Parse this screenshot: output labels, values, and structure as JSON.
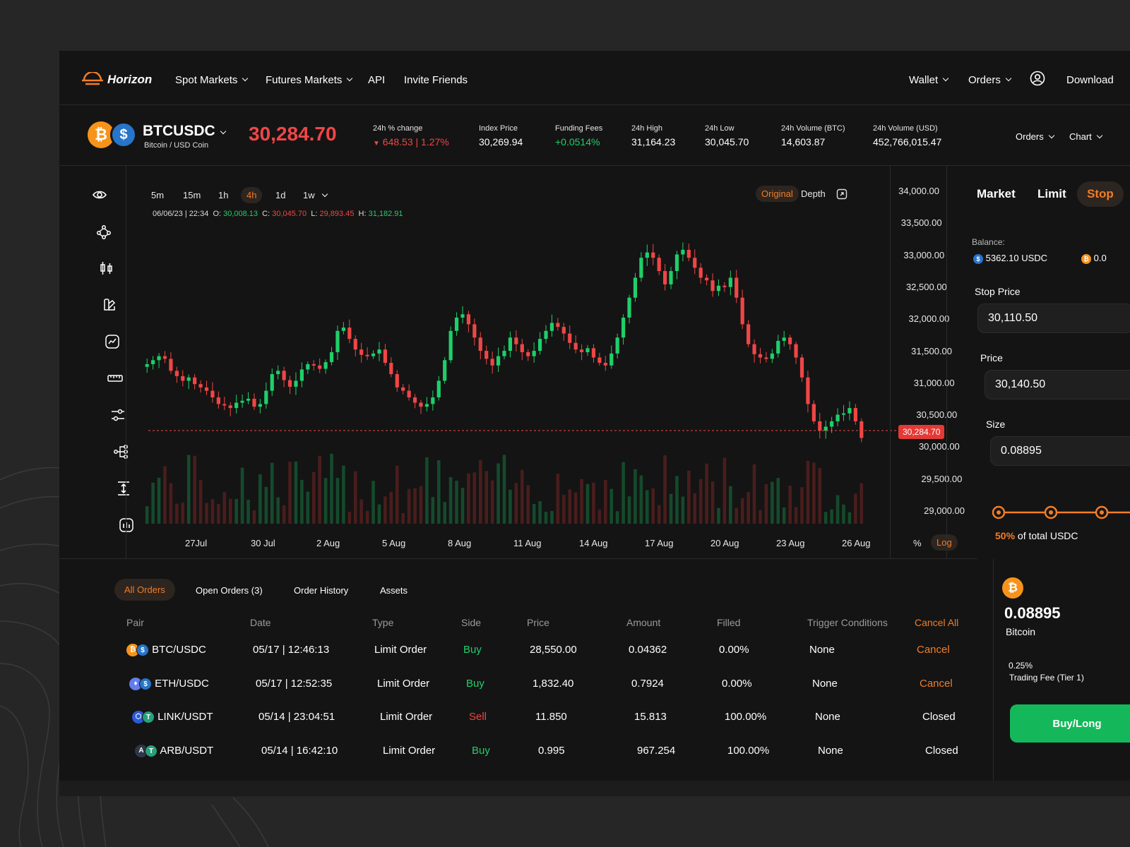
{
  "app": {
    "brand": "Horizon"
  },
  "nav": {
    "items": [
      "Spot Markets",
      "Futures Markets",
      "API",
      "Invite Friends"
    ],
    "right": [
      "Wallet",
      "Orders",
      "Download"
    ]
  },
  "pair": {
    "symbol": "BTCUSDC",
    "name": "Bitcoin / USD Coin",
    "last_price": "30,284.70"
  },
  "stats": [
    {
      "label": "24h % change",
      "value": "648.53 | 1.27%",
      "color": "#f04646"
    },
    {
      "label": "Index Price",
      "value": "30,269.94"
    },
    {
      "label": "Funding Fees",
      "value": "+0.0514%",
      "color": "#1fcf6a"
    },
    {
      "label": "24h High",
      "value": "31,164.23"
    },
    {
      "label": "24h Low",
      "value": "30,045.70"
    },
    {
      "label": "24h Volume (BTC)",
      "value": "14,603.87"
    },
    {
      "label": "24h Volume (USD)",
      "value": "452,766,015.47"
    }
  ],
  "header_right": {
    "orders": "Orders",
    "chart": "Chart"
  },
  "toolbar_icons": [
    "eye-icon",
    "node-icon",
    "candles-icon",
    "brush-icon",
    "chart-icon",
    "ruler-icon",
    "sliders-icon",
    "tree-icon",
    "resize-icon",
    "volume-icon"
  ],
  "chart": {
    "timeframes": [
      "5m",
      "15m",
      "1h",
      "4h",
      "1d",
      "1w"
    ],
    "active_timeframe": "4h",
    "views": {
      "original": "Original",
      "depth": "Depth"
    },
    "ohlc": {
      "time": "06/06/23 | 22:34",
      "o": "30,008.13",
      "c": "30,045.70",
      "l": "29,893.45",
      "h": "31,182.91"
    },
    "y_labels": [
      "34,000.00",
      "33,500.00",
      "33,000.00",
      "32,500.00",
      "32,000.00",
      "31,500.00",
      "31,000.00",
      "30,500.00",
      "30,000.00",
      "29,500.00",
      "29,000.00"
    ],
    "x_labels": [
      "27Jul",
      "30 Jul",
      "2 Aug",
      "5 Aug",
      "8 Aug",
      "11 Aug",
      "14 Aug",
      "17 Aug",
      "20 Aug",
      "23 Aug",
      "26 Aug"
    ],
    "current_price_tag": "30,284.70",
    "scale": {
      "percent": "%",
      "log": "Log"
    }
  },
  "chart_data": {
    "type": "candlestick",
    "ylim": [
      29000,
      34000
    ],
    "grid": false,
    "current_price": 30284.7,
    "close_series": [
      31400,
      31460,
      31520,
      31480,
      31300,
      31220,
      31150,
      31200,
      31100,
      31050,
      31000,
      30900,
      30800,
      30780,
      30740,
      30820,
      30850,
      30880,
      30760,
      30800,
      31000,
      31250,
      31300,
      31160,
      31060,
      31150,
      31320,
      31400,
      31380,
      31330,
      31430,
      31580,
      31900,
      31950,
      31780,
      31620,
      31540,
      31520,
      31560,
      31620,
      31420,
      31250,
      31050,
      31000,
      30900,
      30820,
      30760,
      30800,
      30900,
      31150,
      31460,
      31900,
      32100,
      32150,
      32000,
      31800,
      31600,
      31480,
      31380,
      31520,
      31600,
      31800,
      31700,
      31580,
      31520,
      31600,
      31780,
      31900,
      32020,
      31960,
      31860,
      31720,
      31620,
      31580,
      31640,
      31500,
      31420,
      31380,
      31560,
      31800,
      32100,
      32400,
      32700,
      33000,
      33080,
      33000,
      32800,
      32600,
      32800,
      33050,
      33120,
      33000,
      32850,
      32700,
      32660,
      32500,
      32580,
      32560,
      32700,
      32400,
      32000,
      31700,
      31550,
      31500,
      31480,
      31560,
      31750,
      31800,
      31700,
      31500,
      31200,
      30800,
      30540,
      30400,
      30460,
      30540,
      30640,
      30660,
      30740,
      30540,
      30290
    ],
    "volume_note": "volume bars below price, green = up, red = down"
  },
  "bottom_tabs": [
    "All Orders",
    "Open Orders (3)",
    "Order History",
    "Assets"
  ],
  "orders_table": {
    "headers": [
      "Pair",
      "Date",
      "Type",
      "Side",
      "Price",
      "Amount",
      "Filled",
      "Trigger Conditions"
    ],
    "cancel_all": "Cancel All",
    "rows": [
      {
        "pair": "BTC/USDC",
        "date": "05/17 | 12:46:13",
        "type": "Limit Order",
        "side": "Buy",
        "price": "28,550.00",
        "amount": "0.04362",
        "filled": "0.00%",
        "trigger": "None",
        "action": "Cancel"
      },
      {
        "pair": "ETH/USDC",
        "date": "05/17 | 12:52:35",
        "type": "Limit Order",
        "side": "Buy",
        "price": "1,832.40",
        "amount": "0.7924",
        "filled": "0.00%",
        "trigger": "None",
        "action": "Cancel"
      },
      {
        "pair": "LINK/USDT",
        "date": "05/14 | 23:04:51",
        "type": "Limit Order",
        "side": "Sell",
        "price": "11.850",
        "amount": "15.813",
        "filled": "100.00%",
        "trigger": "None",
        "action": "Closed"
      },
      {
        "pair": "ARB/USDT",
        "date": "05/14 | 16:42:10",
        "type": "Limit Order",
        "side": "Buy",
        "price": "0.995",
        "amount": "967.254",
        "filled": "100.00%",
        "trigger": "None",
        "action": "Closed"
      }
    ]
  },
  "order_panel": {
    "tabs": [
      "Market",
      "Limit",
      "Stop"
    ],
    "balance_label": "Balance:",
    "balance_usdc": "5362.10 USDC",
    "balance_btc": "0.0",
    "stop_price_label": "Stop Price",
    "stop_price": "30,110.50",
    "price_label": "Price",
    "price": "30,140.50",
    "size_label": "Size",
    "size": "0.08895",
    "slider_percent": "50%",
    "slider_text": "of total USDC",
    "slider_value": 0.5,
    "summary_amount": "0.08895",
    "summary_coin": "Bitcoin",
    "fee_pct": "0.25%",
    "fee_label": "Trading Fee (Tier 1)",
    "buy_button": "Buy/Long"
  }
}
